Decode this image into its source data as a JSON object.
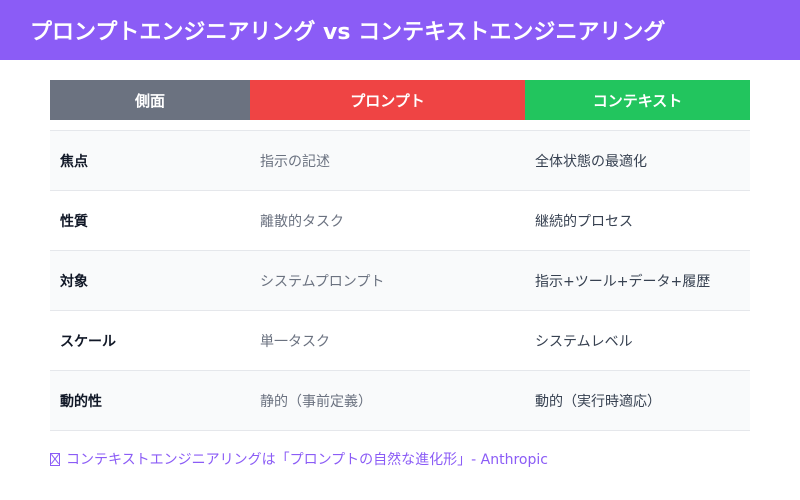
{
  "header": {
    "title": "プロンプトエンジニアリング vs コンテキストエンジニアリング"
  },
  "table": {
    "columns": [
      "側面",
      "プロンプト",
      "コンテキスト"
    ],
    "header_colors": [
      "#6b7280",
      "#ef4444",
      "#22c55e"
    ],
    "rows": [
      [
        "焦点",
        "指示の記述",
        "全体状態の最適化"
      ],
      [
        "性質",
        "離散的タスク",
        "継続的プロセス"
      ],
      [
        "対象",
        "システムプロンプト",
        "指示+ツール+データ+履歴"
      ],
      [
        "スケール",
        "単一タスク",
        "システムレベル"
      ],
      [
        "動的性",
        "静的（事前定義）",
        "動的（実行時適応）"
      ]
    ]
  },
  "footnote": {
    "icon": "missing-glyph-icon",
    "text": "コンテキストエンジニアリングは「プロンプトの自然な進化形」- Anthropic"
  },
  "colors": {
    "accent": "#8b5cf6"
  }
}
